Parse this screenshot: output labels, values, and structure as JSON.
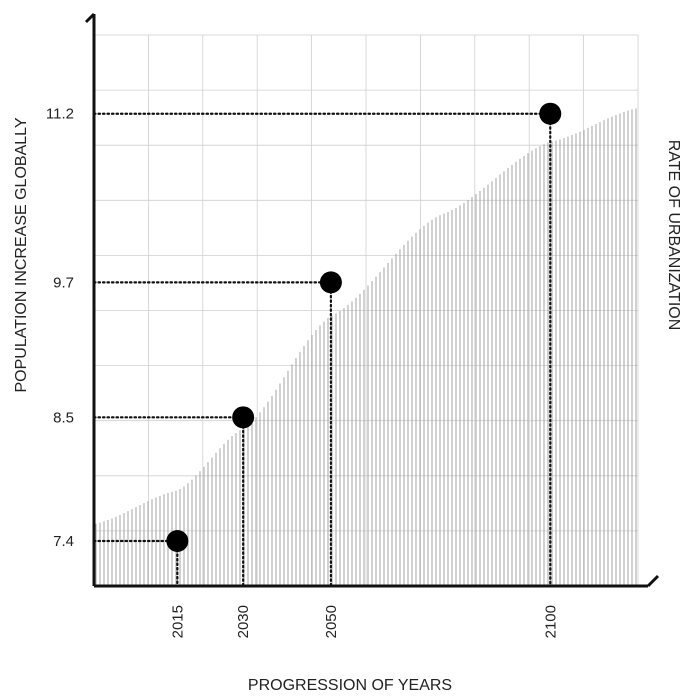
{
  "colors": {
    "axis": "#111111",
    "grid": "#cfcfcf",
    "hatch": "#9a9a9a",
    "point": "#000000"
  },
  "chart_data": {
    "type": "scatter",
    "title": "",
    "xlabel": "PROGRESSION OF YEARS",
    "ylabel": "POPULATION INCREASE GLOBALLY",
    "right_label": "RATE OF URBANIZATION",
    "grid": true,
    "xlim": [
      1996,
      2120
    ],
    "ylim": [
      7.0,
      11.9
    ],
    "x_ticks": [
      "2015",
      "2030",
      "2050",
      "2100"
    ],
    "y_ticks": [
      "7.4",
      "8.5",
      "9.7",
      "11.2"
    ],
    "series": [
      {
        "x": [
          2015,
          2030,
          2050,
          2100
        ],
        "y": [
          7.4,
          8.5,
          9.7,
          11.2
        ]
      }
    ],
    "area_curve": {
      "x": [
        1996,
        2015,
        2030,
        2050,
        2075,
        2100,
        2120
      ],
      "y": [
        7.55,
        7.85,
        8.4,
        9.4,
        10.3,
        10.95,
        11.25
      ]
    }
  }
}
